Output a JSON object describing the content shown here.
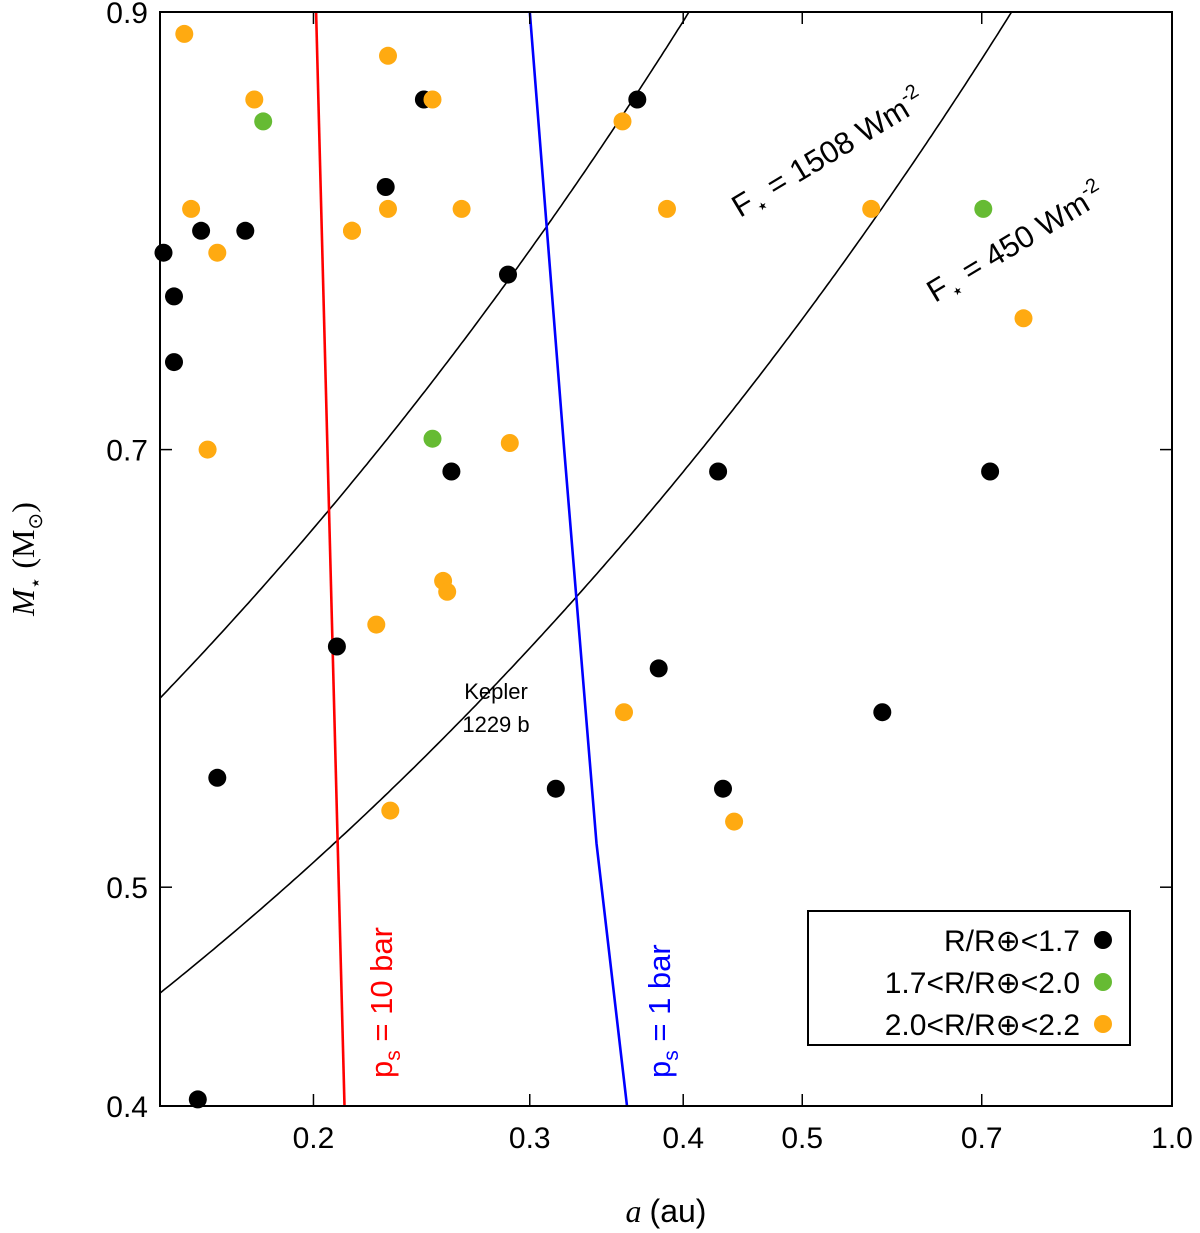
{
  "chart_data": {
    "type": "scatter",
    "xlabel": {
      "symbol": "a",
      "unit": "(au)"
    },
    "ylabel": {
      "symbol": "M",
      "subscript": "⋆",
      "unit": "(M",
      "unit_sub": "⊙",
      "unit_close": ")"
    },
    "x_scale": "log",
    "xlim": [
      0.15,
      1.0
    ],
    "ylim": [
      0.4,
      0.9
    ],
    "x_ticks": [
      {
        "value": 0.2,
        "label": "0.2"
      },
      {
        "value": 0.3,
        "label": "0.3"
      },
      {
        "value": 0.4,
        "label": "0.4"
      },
      {
        "value": 0.5,
        "label": "0.5"
      },
      {
        "value": 0.7,
        "label": "0.7"
      },
      {
        "value": 1.0,
        "label": "1.0"
      }
    ],
    "y_ticks": [
      {
        "value": 0.4,
        "label": "0.4"
      },
      {
        "value": 0.5,
        "label": "0.5"
      },
      {
        "value": 0.7,
        "label": "0.7"
      },
      {
        "value": 0.9,
        "label": "0.9"
      }
    ],
    "grid": false,
    "colors": {
      "black": "#000000",
      "green": "#66bb33",
      "orange": "#ffaa11",
      "red": "#ff0000",
      "blue": "#0000ff"
    },
    "series": [
      {
        "name": "R/R⊕<1.7",
        "color": "#000000",
        "points": [
          [
            0.151,
            0.79
          ],
          [
            0.154,
            0.77
          ],
          [
            0.154,
            0.74
          ],
          [
            0.162,
            0.8
          ],
          [
            0.176,
            0.8
          ],
          [
            0.229,
            0.82
          ],
          [
            0.246,
            0.86
          ],
          [
            0.288,
            0.78
          ],
          [
            0.367,
            0.86
          ],
          [
            0.259,
            0.69
          ],
          [
            0.427,
            0.69
          ],
          [
            0.711,
            0.69
          ],
          [
            0.382,
            0.6
          ],
          [
            0.209,
            0.61
          ],
          [
            0.581,
            0.58
          ],
          [
            0.167,
            0.55
          ],
          [
            0.315,
            0.545
          ],
          [
            0.431,
            0.545
          ],
          [
            0.161,
            0.403
          ]
        ]
      },
      {
        "name": "1.7<R/R⊕<2.0",
        "color": "#66bb33",
        "points": [
          [
            0.182,
            0.85
          ],
          [
            0.702,
            0.81
          ],
          [
            0.25,
            0.705
          ]
        ]
      },
      {
        "name": "2.0<R/R⊕<2.2",
        "color": "#ffaa11",
        "points": [
          [
            0.157,
            0.89
          ],
          [
            0.159,
            0.81
          ],
          [
            0.167,
            0.79
          ],
          [
            0.179,
            0.86
          ],
          [
            0.215,
            0.8
          ],
          [
            0.215,
            0.8
          ],
          [
            0.23,
            0.88
          ],
          [
            0.23,
            0.81
          ],
          [
            0.25,
            0.86
          ],
          [
            0.264,
            0.81
          ],
          [
            0.357,
            0.85
          ],
          [
            0.388,
            0.81
          ],
          [
            0.569,
            0.81
          ],
          [
            0.757,
            0.76
          ],
          [
            0.164,
            0.7
          ],
          [
            0.289,
            0.703
          ],
          [
            0.255,
            0.64
          ],
          [
            0.257,
            0.635
          ],
          [
            0.225,
            0.62
          ],
          [
            0.358,
            0.58
          ],
          [
            0.231,
            0.535
          ],
          [
            0.44,
            0.53
          ]
        ]
      }
    ],
    "curves": [
      {
        "name": "F⋆ = 1508 Wm⁻²",
        "label_main": "F",
        "label_sub": "⋆",
        "label_rest": " = 1508 Wm",
        "label_sup": "-2",
        "color": "#000000",
        "type": "flux",
        "flux": 1508
      },
      {
        "name": "F⋆ = 450 Wm⁻²",
        "label_main": "F",
        "label_sub": "⋆",
        "label_rest": " = 450 Wm",
        "label_sup": "-2",
        "color": "#000000",
        "type": "flux",
        "flux": 450
      },
      {
        "name": "ps = 10 bar",
        "label_main": "p",
        "label_sub": "s",
        "label_rest": " = 10 bar",
        "color": "#ff0000",
        "type": "line",
        "points": [
          [
            0.201,
            0.9
          ],
          [
            0.212,
            0.4
          ]
        ]
      },
      {
        "name": "ps = 1 bar",
        "label_main": "p",
        "label_sub": "s",
        "label_rest": " = 1 bar",
        "color": "#0000ff",
        "type": "line",
        "points": [
          [
            0.3,
            0.9
          ],
          [
            0.32,
            0.7
          ],
          [
            0.34,
            0.52
          ],
          [
            0.36,
            0.4
          ]
        ]
      }
    ],
    "annotations": [
      {
        "text_line1": "Kepler",
        "text_line2": "1229 b",
        "x": 0.315,
        "y": 0.545
      }
    ],
    "legend": {
      "position": "bottom-right",
      "entries": [
        {
          "label": "R/R⊕<1.7",
          "color": "#000000"
        },
        {
          "label": "1.7<R/R⊕<2.0",
          "color": "#66bb33"
        },
        {
          "label": "2.0<R/R⊕<2.2",
          "color": "#ffaa11"
        }
      ]
    }
  }
}
